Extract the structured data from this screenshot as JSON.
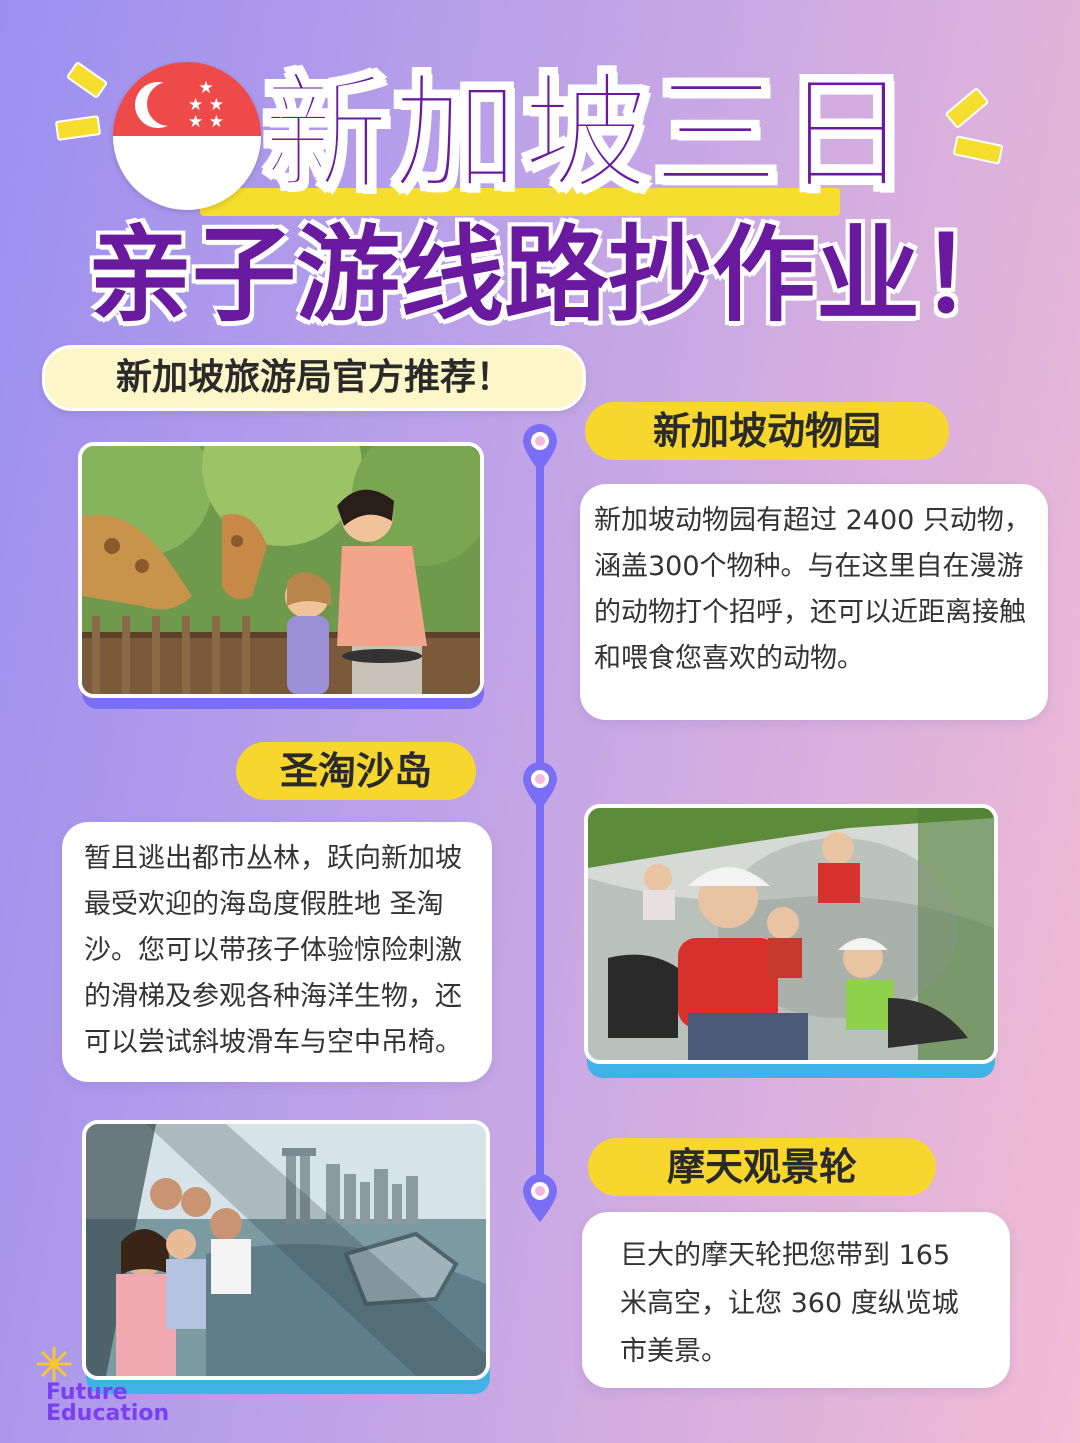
{
  "title": {
    "line1": "新加坡三日",
    "line2": "亲子游线路抄作业！"
  },
  "subtitle": "新加坡旅游局官方推荐！",
  "flag": {
    "icon": "singapore-flag-icon",
    "red": "#ee4a4a",
    "white": "#ffffff"
  },
  "sections": [
    {
      "name": "新加坡动物园",
      "description": "新加坡动物园有超过 2400 只动物，涵盖300个物种。与在这里自在漫游的动物打个招呼，还可以近距离接触和喂食您喜欢的动物。",
      "image": "giraffe-feeding-photo"
    },
    {
      "name": "圣淘沙岛",
      "description": "暂且逃出都市丛林，跃向新加坡最受欢迎的海岛度假胜地 圣淘沙。您可以带孩子体验惊险刺激的滑梯及参观各种海洋生物，还可以尝试斜坡滑车与空中吊椅。",
      "image": "luge-ride-photo"
    },
    {
      "name": "摩天观景轮",
      "description": "巨大的摩天轮把您带到 165 米高空，让您 360 度纵览城市美景。",
      "image": "ferris-wheel-capsule-photo"
    }
  ],
  "logo": {
    "line1": "Future",
    "line2": "Education"
  },
  "colors": {
    "title": "#6a1a9e",
    "accent_yellow": "#f7d72e",
    "timeline": "#7b6ef6",
    "logo": "#7b3ff2"
  }
}
